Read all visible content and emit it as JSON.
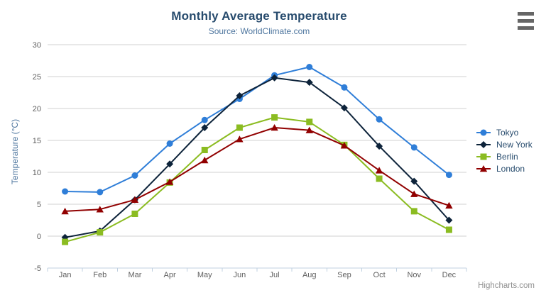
{
  "header": {
    "title": "Monthly Average Temperature",
    "subtitle": "Source: WorldClimate.com"
  },
  "credits": "Highcharts.com",
  "style": {
    "title_color": "#274b6d",
    "subtitle_color": "#4d759e",
    "axis_title_color": "#4d759e",
    "axis_label_color": "#606060",
    "grid_color": "#d0d0d0",
    "axis_line_color": "#c0d0e0",
    "legend_text_color": "#274b6d",
    "credits_color": "#909090",
    "menu_icon_color": "#666666"
  },
  "chart_data": {
    "type": "line",
    "title": "Monthly Average Temperature",
    "subtitle": "Source: WorldClimate.com",
    "categories": [
      "Jan",
      "Feb",
      "Mar",
      "Apr",
      "May",
      "Jun",
      "Jul",
      "Aug",
      "Sep",
      "Oct",
      "Nov",
      "Dec"
    ],
    "series": [
      {
        "name": "Tokyo",
        "color": "#2f7ed8",
        "marker": "circle",
        "values": [
          7.0,
          6.9,
          9.5,
          14.5,
          18.2,
          21.5,
          25.2,
          26.5,
          23.3,
          18.3,
          13.9,
          9.6
        ]
      },
      {
        "name": "New York",
        "color": "#0d233a",
        "marker": "diamond",
        "values": [
          -0.2,
          0.8,
          5.7,
          11.3,
          17.0,
          22.0,
          24.8,
          24.1,
          20.1,
          14.1,
          8.6,
          2.5
        ]
      },
      {
        "name": "Berlin",
        "color": "#8bbc21",
        "marker": "square",
        "values": [
          -0.9,
          0.6,
          3.5,
          8.4,
          13.5,
          17.0,
          18.6,
          17.9,
          14.3,
          9.0,
          3.9,
          1.0
        ]
      },
      {
        "name": "London",
        "color": "#910000",
        "marker": "triangle",
        "values": [
          3.9,
          4.2,
          5.7,
          8.5,
          11.9,
          15.2,
          17.0,
          16.6,
          14.2,
          10.3,
          6.6,
          4.8
        ]
      }
    ],
    "xlabel": "",
    "ylabel": "Temperature (°C)",
    "ylim": [
      -5,
      30
    ],
    "ytick_step": 5,
    "yticks": [
      30,
      25,
      20,
      15,
      10,
      5,
      0,
      -5
    ],
    "grid": true,
    "legend_position": "right"
  }
}
